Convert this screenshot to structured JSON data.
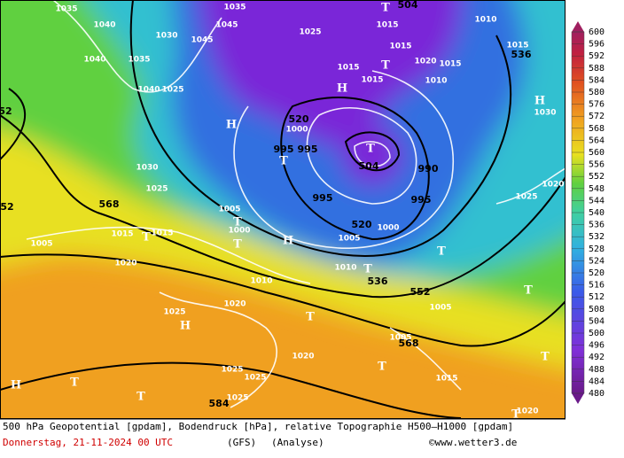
{
  "map": {
    "labels": [
      "1035",
      "1040",
      "1040",
      "1035",
      "1030",
      "1045",
      "1045",
      "1035",
      "1025",
      "504",
      "1015",
      "1010",
      "1015",
      "1015",
      "1020",
      "1015",
      "536",
      "1010",
      "1015",
      "1015",
      "1030",
      "1025",
      "1040",
      "520",
      "1000",
      "504",
      "995",
      "995",
      "990",
      "995",
      "995",
      "1025",
      "1030",
      "568",
      "1005",
      "1000",
      "520",
      "1000",
      "1005",
      "1015",
      "1015",
      "1005",
      "1020",
      "1010",
      "1010",
      "536",
      "552",
      "1005",
      "1020",
      "1025",
      "1025",
      "1025",
      "1020",
      "1005",
      "568",
      "1015",
      "584",
      "1025",
      "1020",
      "1020",
      "1025",
      "52",
      "52"
    ],
    "symbols": [
      "H",
      "T",
      "T",
      "H",
      "T",
      "H",
      "T",
      "T",
      "T",
      "T",
      "T",
      "T",
      "T",
      "T",
      "H",
      "T",
      "T",
      "H",
      "H",
      "T",
      "T",
      "T"
    ]
  },
  "colorbar": {
    "lim": [
      480,
      600
    ],
    "ticks": [
      480,
      484,
      488,
      492,
      496,
      500,
      504,
      508,
      512,
      516,
      520,
      524,
      528,
      532,
      536,
      540,
      544,
      548,
      552,
      556,
      560,
      564,
      568,
      572,
      576,
      580,
      584,
      588,
      592,
      596,
      600
    ]
  },
  "footer": {
    "description": "500 hPa Geopotential [gpdam], Bodendruck [hPa], relative Topographie H500–H1000 [gpdam]",
    "date": "Donnerstag, 21-11-2024  00 UTC",
    "model": "(GFS)",
    "run": "(Analyse)",
    "source": "©www.wetter3.de"
  }
}
